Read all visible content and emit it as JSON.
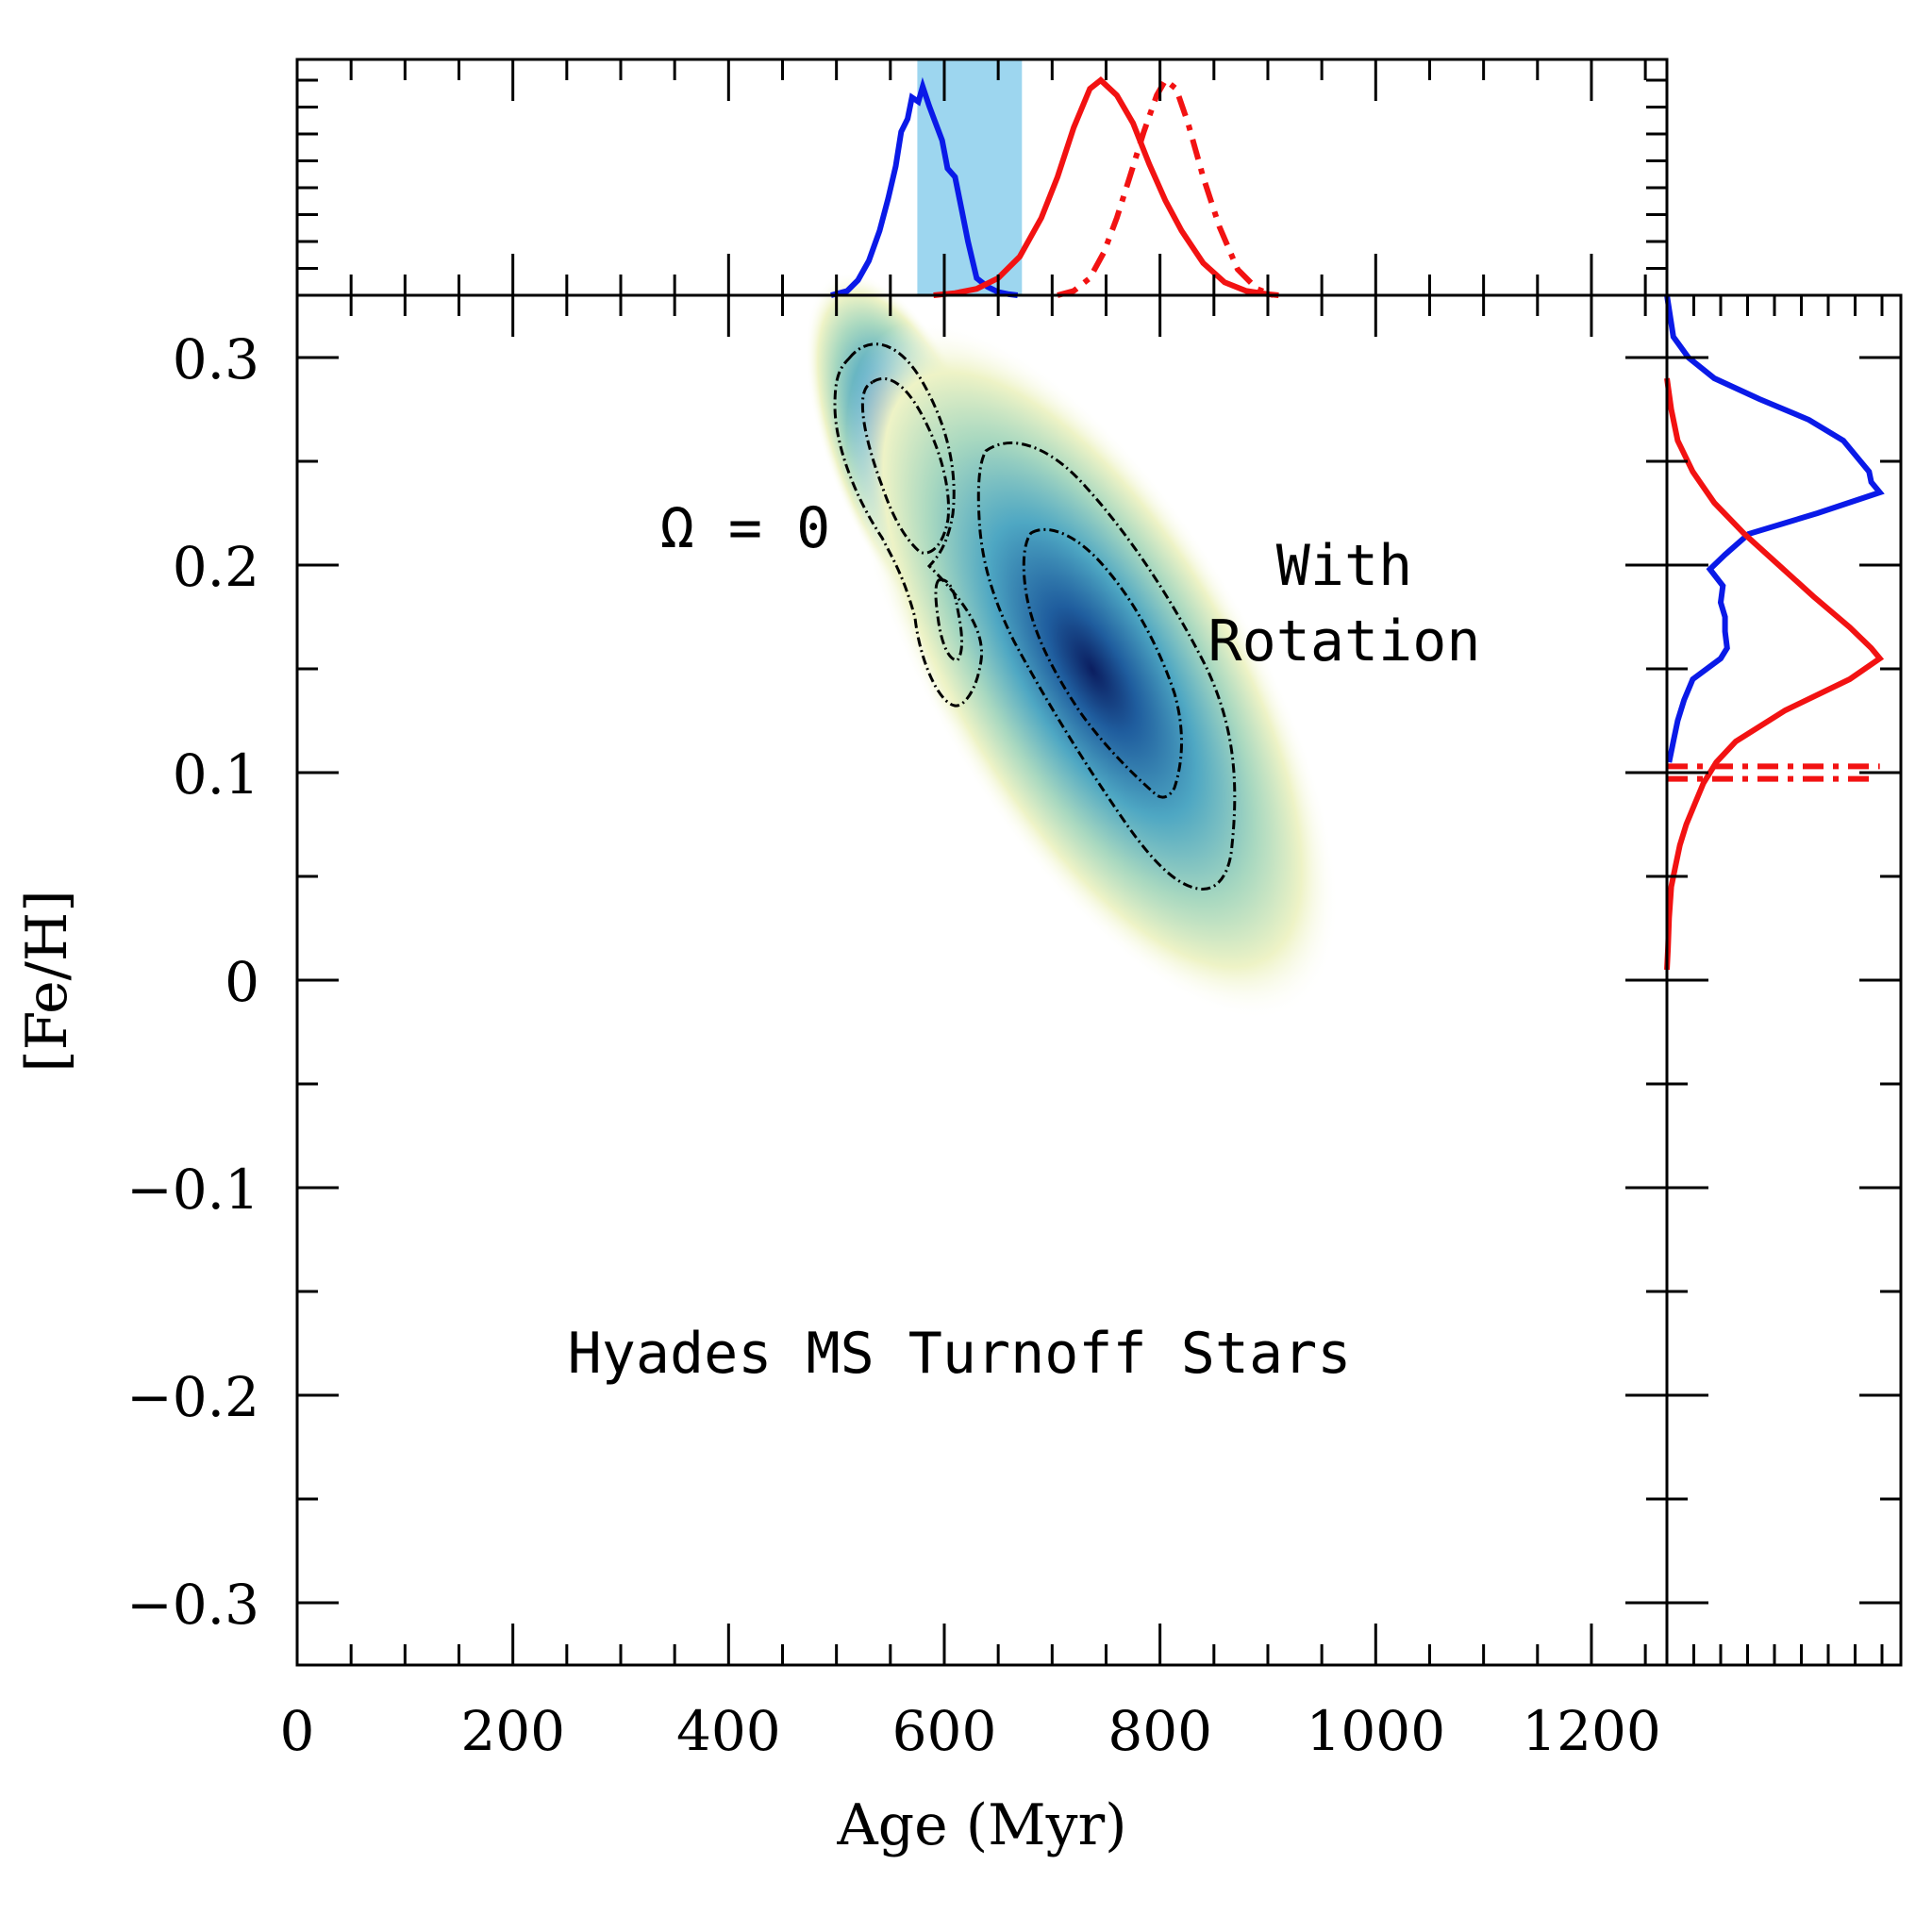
{
  "chart_data": {
    "type": "scatter",
    "title": "",
    "xlabel": "Age (Myr)",
    "ylabel": "[Fe/H]",
    "xlim": [
      0,
      1270
    ],
    "ylim": [
      -0.33,
      0.33
    ],
    "x_ticks": [
      "0",
      "200",
      "400",
      "600",
      "800",
      "1000",
      "1200"
    ],
    "y_ticks": [
      "0.3",
      "0.2",
      "0.1",
      "0",
      "−0.1",
      "−0.2",
      "−0.3"
    ],
    "x_tick_values": [
      0,
      200,
      400,
      600,
      800,
      1000,
      1200
    ],
    "y_tick_values": [
      0.3,
      0.2,
      0.1,
      0,
      -0.1,
      -0.2,
      -0.3
    ],
    "annotations": {
      "omega": "Ω = 0",
      "with": "With",
      "rotation": "Rotation",
      "label": "Hyades MS Turnoff Stars"
    },
    "colors": {
      "nonrot": "#0a1ae8",
      "rot": "#f21212",
      "band": "#9dd6ef"
    },
    "shaded_age_band": [
      575,
      672
    ],
    "density_peaks": [
      {
        "name": "Ω = 0",
        "age": 575,
        "feh": 0.235
      },
      {
        "name": "With Rotation",
        "age": 735,
        "feh": 0.155
      }
    ],
    "top_panel": {
      "series": [
        {
          "name": "Ω = 0",
          "style": "solid",
          "color": "#0a1ae8",
          "x": [
            495,
            510,
            520,
            530,
            540,
            548,
            555,
            560,
            566,
            570,
            576,
            580,
            586,
            592,
            598,
            603,
            610,
            616,
            622,
            630,
            640,
            650,
            660,
            668
          ],
          "y": [
            0,
            0.02,
            0.07,
            0.16,
            0.3,
            0.45,
            0.6,
            0.76,
            0.82,
            0.92,
            0.9,
            0.97,
            0.88,
            0.8,
            0.72,
            0.59,
            0.55,
            0.4,
            0.25,
            0.08,
            0.04,
            0.015,
            0.005,
            0
          ]
        },
        {
          "name": "With Rotation",
          "style": "solid",
          "color": "#f21212",
          "x": [
            590,
            610,
            630,
            650,
            670,
            690,
            705,
            720,
            735,
            745,
            760,
            775,
            790,
            805,
            820,
            840,
            860,
            880,
            900,
            910
          ],
          "y": [
            0,
            0.01,
            0.03,
            0.08,
            0.18,
            0.36,
            0.55,
            0.78,
            0.96,
            1.0,
            0.93,
            0.8,
            0.61,
            0.44,
            0.3,
            0.15,
            0.06,
            0.02,
            0.005,
            0
          ]
        },
        {
          "name": "With Rotation (alt)",
          "style": "dashdot",
          "color": "#f21212",
          "x": [
            705,
            720,
            735,
            748,
            760,
            772,
            785,
            797,
            805,
            815,
            826,
            840,
            855,
            872,
            890,
            905
          ],
          "y": [
            0,
            0.02,
            0.08,
            0.2,
            0.36,
            0.55,
            0.76,
            0.93,
            1.0,
            0.96,
            0.8,
            0.55,
            0.32,
            0.12,
            0.03,
            0
          ]
        }
      ]
    },
    "right_panel": {
      "series": [
        {
          "name": "Ω = 0",
          "style": "solid",
          "color": "#0a1ae8",
          "feh": [
            0.33,
            0.31,
            0.3,
            0.29,
            0.28,
            0.27,
            0.26,
            0.25,
            0.245,
            0.24,
            0.235,
            0.225,
            0.215,
            0.205,
            0.198,
            0.19,
            0.182,
            0.175,
            0.168,
            0.16,
            0.155,
            0.145,
            0.135,
            0.125,
            0.115,
            0.105
          ],
          "density": [
            0,
            0.03,
            0.1,
            0.22,
            0.43,
            0.66,
            0.82,
            0.9,
            0.94,
            0.95,
            0.99,
            0.7,
            0.38,
            0.27,
            0.2,
            0.26,
            0.25,
            0.27,
            0.27,
            0.28,
            0.25,
            0.12,
            0.08,
            0.05,
            0.03,
            0.01
          ]
        },
        {
          "name": "With Rotation",
          "style": "solid",
          "color": "#f21212",
          "feh": [
            0.29,
            0.275,
            0.26,
            0.245,
            0.23,
            0.215,
            0.2,
            0.185,
            0.17,
            0.16,
            0.155,
            0.145,
            0.13,
            0.115,
            0.105,
            0.095,
            0.085,
            0.075,
            0.065,
            0.055,
            0.045,
            0.03,
            0.015,
            0.005
          ],
          "density": [
            0,
            0.02,
            0.05,
            0.12,
            0.22,
            0.36,
            0.52,
            0.68,
            0.85,
            0.95,
            0.99,
            0.85,
            0.55,
            0.32,
            0.23,
            0.17,
            0.13,
            0.09,
            0.06,
            0.04,
            0.02,
            0.01,
            0.005,
            0
          ]
        },
        {
          "name": "With Rotation (alt)",
          "style": "dashdot",
          "color": "#f21212",
          "feh": [
            0.103,
            0.097
          ],
          "density": [
            0.99,
            0.95
          ]
        }
      ]
    }
  }
}
